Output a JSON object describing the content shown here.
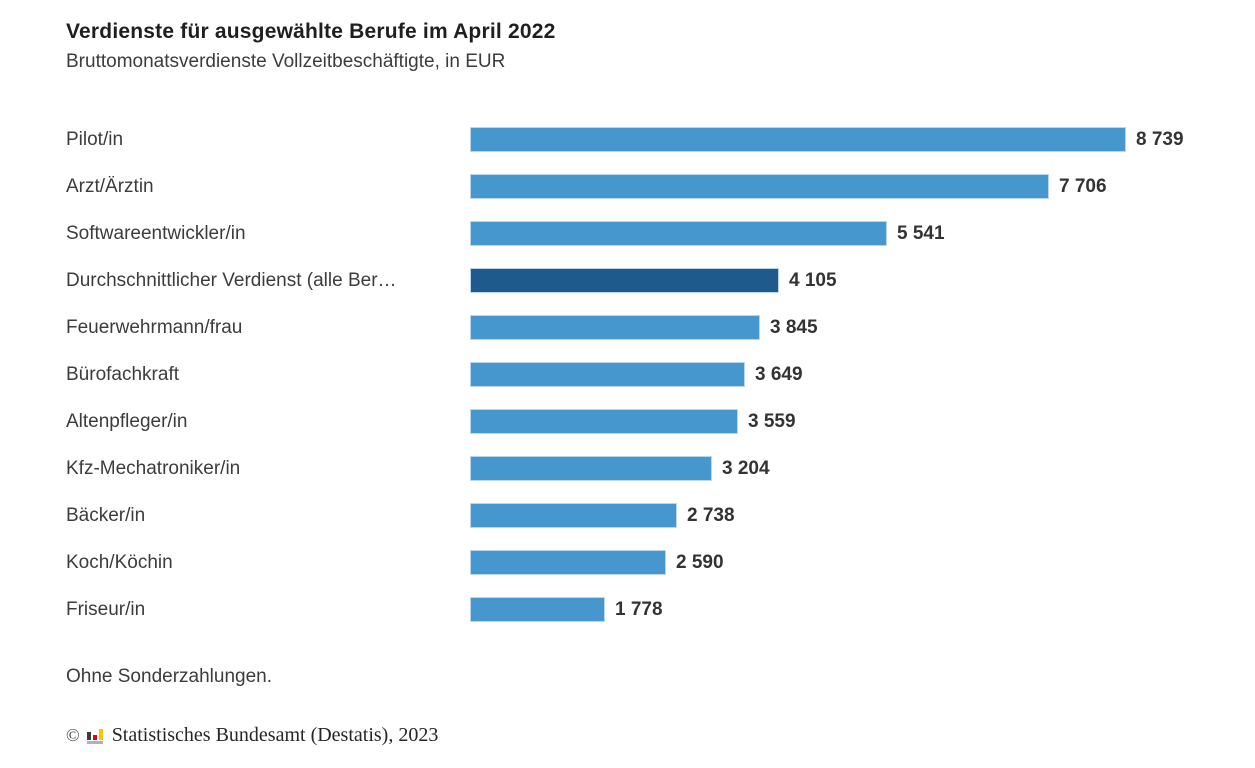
{
  "page": {
    "background": "#ffffff"
  },
  "header": {
    "title": "Verdienste für ausgewählte Berufe im April 2022",
    "subtitle": "Bruttomonatsverdienste Vollzeitbeschäftigte, in EUR"
  },
  "chart_data": {
    "type": "bar",
    "orientation": "horizontal",
    "title": "Verdienste für ausgewählte Berufe im April 2022",
    "subtitle": "Bruttomonatsverdienste Vollzeitbeschäftigte, in EUR",
    "xlabel": "",
    "ylabel": "",
    "xlim": [
      0,
      8739
    ],
    "grid": false,
    "legend": false,
    "categories": [
      "Pilot/in",
      "Arzt/Ärztin",
      "Softwareentwickler/in",
      "Durchschnittlicher Verdienst (alle Ber…",
      "Feuerwehrmann/frau",
      "Bürofachkraft",
      "Altenpfleger/in",
      "Kfz-Mechatroniker/in",
      "Bäcker/in",
      "Koch/Köchin",
      "Friseur/in"
    ],
    "values": [
      8739,
      7706,
      5541,
      4105,
      3845,
      3649,
      3559,
      3204,
      2738,
      2590,
      1778
    ],
    "value_labels": [
      "8 739",
      "7 706",
      "5 541",
      "4 105",
      "3 845",
      "3 649",
      "3 559",
      "3 204",
      "2 738",
      "2 590",
      "1 778"
    ],
    "highlight_index": 3,
    "bar_color": "#4697ce",
    "highlight_color": "#1f5a8c"
  },
  "footer": {
    "note": "Ohne Sonderzahlungen.",
    "copyright_symbol": "©",
    "copyright": "Statistisches Bundesamt (Destatis), 2023",
    "logo_colors": {
      "bar_dark": "#3c3c3b",
      "bar_red": "#e2001a",
      "bar_gold": "#f8c500",
      "base": "#b2b2b2"
    }
  }
}
